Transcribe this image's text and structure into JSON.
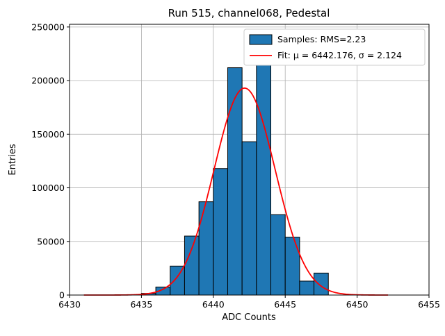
{
  "title": "Run 515, channel068, Pedestal",
  "chart_data": {
    "type": "bar",
    "title": "Run 515, channel068, Pedestal",
    "xlabel": "ADC Counts",
    "ylabel": "Entries",
    "xlim": [
      6430,
      6455
    ],
    "ylim": [
      0,
      252500
    ],
    "xticks": [
      6430,
      6435,
      6440,
      6445,
      6450,
      6455
    ],
    "yticks": [
      0,
      50000,
      100000,
      150000,
      200000,
      250000
    ],
    "grid": true,
    "bar_color": "#1f77b4",
    "bar_edge_color": "#000000",
    "bin_width": 1,
    "bins": [
      6435,
      6436,
      6437,
      6438,
      6439,
      6440,
      6441,
      6442,
      6443,
      6444,
      6445,
      6446,
      6447
    ],
    "values": [
      1500,
      7500,
      27000,
      55000,
      87000,
      118000,
      212000,
      143000,
      218000,
      75000,
      54000,
      13000,
      20500
    ],
    "fit": {
      "mu": 6442.176,
      "sigma": 2.124,
      "amplitude": 193000,
      "color": "#ff0000",
      "x_range": [
        6431,
        6452.2
      ]
    },
    "legend": {
      "position": "upper right",
      "entries": [
        {
          "swatch": "bar",
          "label": "Samples: RMS=2.23"
        },
        {
          "swatch": "line",
          "label": "Fit: μ = 6442.176, σ = 2.124"
        }
      ]
    }
  }
}
